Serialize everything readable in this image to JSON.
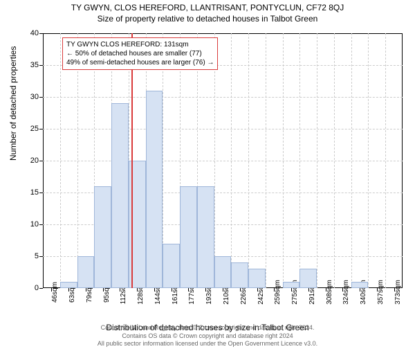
{
  "title": "TY GWYN, CLOS HEREFORD, LLANTRISANT, PONTYCLUN, CF72 8QJ",
  "subtitle": "Size of property relative to detached houses in Talbot Green",
  "chart": {
    "type": "histogram",
    "ylabel": "Number of detached properties",
    "xlabel": "Distribution of detached houses by size in Talbot Green",
    "ylim": [
      0,
      40
    ],
    "yticks": [
      0,
      5,
      10,
      15,
      20,
      25,
      30,
      35,
      40
    ],
    "xticks": [
      "46sqm",
      "63sqm",
      "79sqm",
      "95sqm",
      "112sqm",
      "128sqm",
      "144sqm",
      "161sqm",
      "177sqm",
      "193sqm",
      "210sqm",
      "226sqm",
      "242sqm",
      "259sqm",
      "275sqm",
      "291sqm",
      "308sqm",
      "324sqm",
      "340sqm",
      "357sqm",
      "373sqm"
    ],
    "values": [
      0,
      1,
      5,
      16,
      29,
      20,
      31,
      7,
      16,
      16,
      5,
      4,
      3,
      0,
      1,
      3,
      0,
      0,
      1,
      0,
      0
    ],
    "bar_color": "#d6e2f3",
    "bar_border_color": "#9fb6d9",
    "grid_color": "#cccccc",
    "background_color": "#ffffff",
    "axis_color": "#000000",
    "marker": {
      "color": "#d93a3a",
      "position_index": 5.15,
      "lines": [
        "TY GWYN CLOS HEREFORD: 131sqm",
        "← 50% of detached houses are smaller (77)",
        "49% of semi-detached houses are larger (76) →"
      ]
    },
    "title_fontsize": 12,
    "label_fontsize": 12,
    "tick_fontsize": 10
  },
  "footer": {
    "line1": "Contains HM Land Registry data © Crown copyright and database right 2024.",
    "line2": "Contains OS data © Crown copyright and database right 2024",
    "line3": "All public sector information licensed under the Open Government Licence v3.0."
  }
}
